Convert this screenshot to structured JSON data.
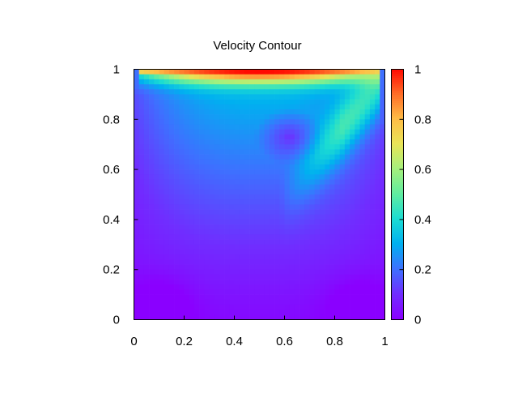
{
  "chart_data": {
    "type": "heatmap",
    "title": "Velocity Contour",
    "xlabel": "",
    "ylabel": "",
    "xlim": [
      0,
      1
    ],
    "ylim": [
      0,
      1
    ],
    "x_ticks": [
      "0",
      "0.2",
      "0.4",
      "0.6",
      "0.8",
      "1"
    ],
    "y_ticks": [
      "0",
      "0.2",
      "0.4",
      "0.6",
      "0.8",
      "1"
    ],
    "colorbar": {
      "range": [
        0,
        1
      ],
      "ticks": [
        "0",
        "0.2",
        "0.4",
        "0.6",
        "0.8",
        "1"
      ],
      "palette": "rainbow"
    },
    "grid_resolution": 50,
    "field_features": {
      "lid_velocity_at_top": 1,
      "primary_vortex_center": [
        0.62,
        0.73
      ],
      "secondary_vortex_region": "lower corners"
    },
    "grid": false
  }
}
